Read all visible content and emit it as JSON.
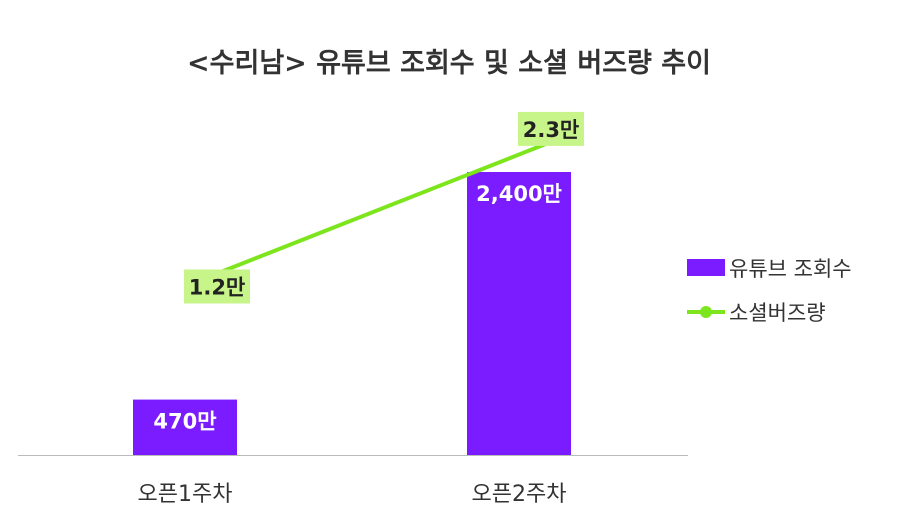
{
  "chart_data": {
    "type": "bar",
    "title": "<수리남> 유튜브 조회수 및 소셜 버즈량 추이",
    "categories": [
      "오픈1주차",
      "오픈2주차"
    ],
    "series": [
      {
        "name": "유튜브 조회수",
        "type": "bar",
        "values": [
          470,
          2400
        ],
        "labels": [
          "470만",
          "2,400만"
        ],
        "color": "#7a1cff"
      },
      {
        "name": "소셜버즈량",
        "type": "line",
        "values": [
          1.2,
          2.3
        ],
        "labels": [
          "1.2만",
          "2.3만"
        ],
        "color": "#7ce51c",
        "label_bg": "#c8f58a"
      }
    ],
    "legend": "right",
    "grid": false
  }
}
